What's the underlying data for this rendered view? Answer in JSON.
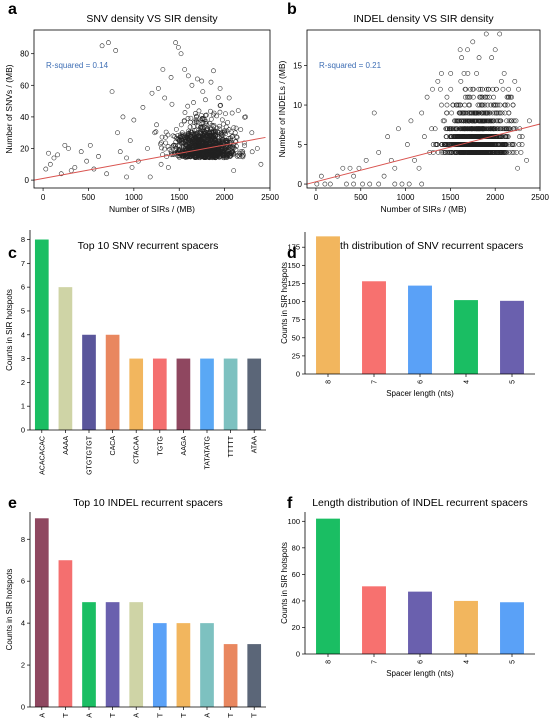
{
  "chart_data": [
    {
      "panel": "a",
      "type": "scatter",
      "title": "SNV density VS SIR density",
      "xlabel": "Number of SIRs / (MB)",
      "ylabel": "Number of SNVs / (MB)",
      "xlim": [
        -100,
        2500
      ],
      "ylim": [
        -5,
        95
      ],
      "xticks": [
        0,
        500,
        1000,
        1500,
        2000,
        2500
      ],
      "yticks": [
        0,
        20,
        40,
        60,
        80
      ],
      "annotation": "R-squared = 0.14",
      "trendline": {
        "x": [
          -100,
          2450
        ],
        "y": [
          0,
          27
        ]
      },
      "seed": 7,
      "points": {
        "sparse": [
          [
            30,
            7
          ],
          [
            60,
            17
          ],
          [
            80,
            10
          ],
          [
            120,
            14
          ],
          [
            160,
            16
          ],
          [
            200,
            4
          ],
          [
            240,
            22
          ],
          [
            280,
            20
          ],
          [
            310,
            6
          ],
          [
            350,
            8
          ],
          [
            420,
            18
          ],
          [
            480,
            12
          ],
          [
            520,
            22
          ],
          [
            560,
            7
          ],
          [
            610,
            15
          ],
          [
            650,
            85
          ],
          [
            720,
            87
          ],
          [
            760,
            56
          ],
          [
            800,
            82
          ],
          [
            820,
            30
          ],
          [
            850,
            18
          ],
          [
            880,
            40
          ],
          [
            920,
            14
          ],
          [
            960,
            25
          ],
          [
            1000,
            38
          ],
          [
            1050,
            12
          ],
          [
            1100,
            46
          ],
          [
            1150,
            20
          ],
          [
            1200,
            55
          ],
          [
            1230,
            30
          ],
          [
            1270,
            58
          ],
          [
            1300,
            10
          ],
          [
            1340,
            52
          ],
          [
            1380,
            8
          ],
          [
            1420,
            48
          ],
          [
            1460,
            87
          ],
          [
            1490,
            84
          ],
          [
            1520,
            80
          ],
          [
            1560,
            70
          ],
          [
            1600,
            66
          ],
          [
            1640,
            60
          ],
          [
            1700,
            64
          ],
          [
            1760,
            56
          ],
          [
            1850,
            62
          ],
          [
            1950,
            58
          ],
          [
            2050,
            52
          ],
          [
            2150,
            44
          ],
          [
            2230,
            40
          ],
          [
            2300,
            30
          ],
          [
            2360,
            20
          ],
          [
            2400,
            10
          ],
          [
            2200,
            18
          ],
          [
            2100,
            6
          ],
          [
            920,
            2
          ],
          [
            1180,
            2
          ],
          [
            1320,
            70
          ],
          [
            1410,
            65
          ],
          [
            1250,
            35
          ],
          [
            980,
            8
          ],
          [
            700,
            4
          ]
        ],
        "cluster": {
          "cx": 1780,
          "cy": 18,
          "sx": 170,
          "sy": 11,
          "n": 1100
        }
      }
    },
    {
      "panel": "b",
      "type": "scatter",
      "title": "INDEL density VS SIR density",
      "xlabel": "Number of SIRs / (MB)",
      "ylabel": "Number of INDELs / (MB)",
      "xlim": [
        -100,
        2500
      ],
      "ylim": [
        -0.5,
        19.5
      ],
      "xticks": [
        0,
        500,
        1000,
        1500,
        2000,
        2500
      ],
      "yticks": [
        0,
        5,
        10,
        15
      ],
      "annotation": "R-squared = 0.21",
      "trendline": {
        "x": [
          -100,
          2500
        ],
        "y": [
          0,
          7.6
        ]
      },
      "seed": 13,
      "points": {
        "sparse": [
          [
            10,
            0
          ],
          [
            60,
            1
          ],
          [
            100,
            0
          ],
          [
            160,
            0
          ],
          [
            240,
            1
          ],
          [
            300,
            2
          ],
          [
            380,
            2
          ],
          [
            420,
            1
          ],
          [
            480,
            2
          ],
          [
            520,
            0
          ],
          [
            560,
            3
          ],
          [
            600,
            0
          ],
          [
            650,
            9
          ],
          [
            700,
            4
          ],
          [
            760,
            1
          ],
          [
            800,
            6
          ],
          [
            840,
            3
          ],
          [
            880,
            2
          ],
          [
            920,
            7
          ],
          [
            960,
            0
          ],
          [
            1020,
            5
          ],
          [
            1060,
            8
          ],
          [
            1100,
            3
          ],
          [
            1150,
            2
          ],
          [
            1180,
            9
          ],
          [
            1210,
            6
          ],
          [
            1240,
            11
          ],
          [
            1270,
            4
          ],
          [
            1300,
            12
          ],
          [
            1330,
            7
          ],
          [
            1360,
            13
          ],
          [
            1400,
            14
          ],
          [
            1180,
            0
          ],
          [
            1040,
            0
          ],
          [
            880,
            0
          ],
          [
            700,
            0
          ],
          [
            420,
            0
          ],
          [
            340,
            0
          ],
          [
            2250,
            2
          ],
          [
            2300,
            5
          ],
          [
            2350,
            3
          ],
          [
            1900,
            19
          ],
          [
            2050,
            19
          ],
          [
            1750,
            18
          ],
          [
            2000,
            17
          ],
          [
            2150,
            12
          ],
          [
            2200,
            10
          ],
          [
            2100,
            14
          ],
          [
            1960,
            16
          ],
          [
            1820,
            16
          ]
        ],
        "cluster": {
          "cx": 1810,
          "cy": 5,
          "sx": 180,
          "sy": 3.4,
          "n": 1200
        }
      }
    },
    {
      "panel": "c",
      "type": "bar",
      "title": "Top 10 SNV recurrent spacers",
      "xlabel": "",
      "ylabel": "Counts in SIR hotspots",
      "ylim": [
        0,
        8.4
      ],
      "yticks": [
        0,
        1,
        2,
        3,
        4,
        5,
        6,
        7,
        8
      ],
      "categories": [
        "ACACACAC",
        "AAAA",
        "GTGTGTGT",
        "CACA",
        "CTACAA",
        "TGTG",
        "AAGA",
        "TATATATG",
        "TTTTT",
        "ATAA"
      ],
      "values": [
        8,
        6,
        4,
        4,
        3,
        3,
        3,
        3,
        3,
        3
      ],
      "colors": [
        "#1abe63",
        "#cfd4a6",
        "#5a569b",
        "#e9875f",
        "#f2b65e",
        "#f46f6f",
        "#8f4760",
        "#5aa8f5",
        "#7dc1c0",
        "#5b6678"
      ]
    },
    {
      "panel": "d",
      "type": "bar",
      "title": "Length distribution of SNV recurrent spacers",
      "xlabel": "Spacer length (nts)",
      "ylabel": "Counts in SIR hotspots",
      "ylim": [
        0,
        196
      ],
      "yticks": [
        0,
        25,
        50,
        75,
        100,
        125,
        150,
        175
      ],
      "categories": [
        "8",
        "7",
        "6",
        "4",
        "5"
      ],
      "values": [
        190,
        128,
        122,
        102,
        101
      ],
      "colors": [
        "#f2b65e",
        "#f7716f",
        "#5aa1f7",
        "#1abe63",
        "#6a60ae"
      ]
    },
    {
      "panel": "e",
      "type": "bar",
      "title": "Top 10 INDEL recurrent spacers",
      "xlabel": "",
      "ylabel": "Counts in SIR hotspots",
      "ylim": [
        0,
        9.3
      ],
      "yticks": [
        0,
        2,
        4,
        6,
        8
      ],
      "categories": [
        "AAAA",
        "TTTT",
        "AAAAA",
        "TTTTT",
        "AAAAAA",
        "TTTTTTTT",
        "TTTTTT",
        "AAAAAAA",
        "TTTTTTT",
        "TGTTTTT"
      ],
      "values": [
        9,
        7,
        5,
        5,
        5,
        4,
        4,
        4,
        3,
        3
      ],
      "colors": [
        "#8f4760",
        "#f46f6f",
        "#1abe63",
        "#6a60ae",
        "#cfd4a6",
        "#5aa1f7",
        "#f2b65e",
        "#7dc1c0",
        "#e9875f",
        "#5b6678"
      ]
    },
    {
      "panel": "f",
      "type": "bar",
      "title": "Length distribution of INDEL recurrent spacers",
      "xlabel": "Spacer length (nts)",
      "ylabel": "Counts in SIR hotspots",
      "ylim": [
        0,
        107
      ],
      "yticks": [
        0,
        20,
        40,
        60,
        80,
        100
      ],
      "categories": [
        "8",
        "7",
        "6",
        "4",
        "5"
      ],
      "values": [
        102,
        51,
        47,
        40,
        39
      ],
      "colors": [
        "#1abe63",
        "#f7716f",
        "#6a60ae",
        "#f2b65e",
        "#5aa1f7"
      ]
    }
  ],
  "style": {
    "point_stroke": "#222222",
    "trend_color": "#d9534f",
    "annotation_color": "#3f6fb5",
    "axis_color": "#000000"
  }
}
